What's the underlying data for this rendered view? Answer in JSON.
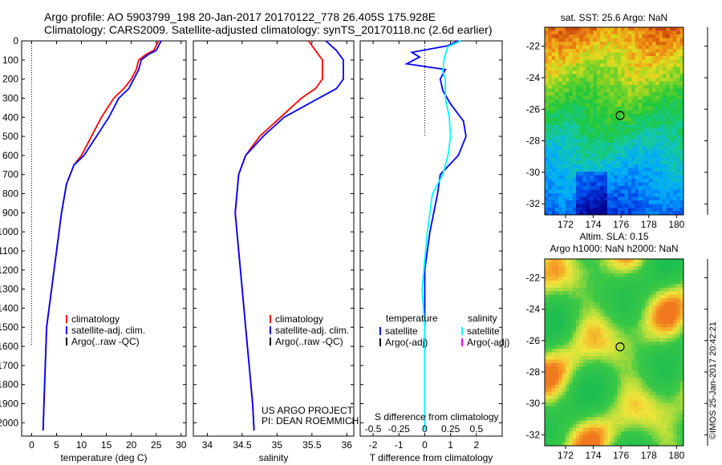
{
  "header": {
    "line1": "Argo profile: AO 5903799_198 20-Jan-2017 20170122_778 26.405S 175.928E",
    "line2": "Climatology: CARS2009. Satellite-adjusted climatology: synTS_20170118.nc (2.6d earlier)"
  },
  "credit": {
    "line1": "US ARGO PROJECT",
    "line2": "PI: DEAN ROEMMICH"
  },
  "stamp": "©IMOS 25-Jan-2017 20:42:21",
  "colors": {
    "climatology": "#ff0000",
    "satellite": "#0000ff",
    "argo": "#000000",
    "sal_satellite": "#00ffff",
    "sal_argo": "#ff00ff"
  },
  "chart_data": [
    {
      "type": "line",
      "id": "temperature",
      "xlabel": "temperature (deg C)",
      "ylim": [
        2070,
        0
      ],
      "xlim": [
        -2,
        31
      ],
      "xticks": [
        0,
        5,
        10,
        15,
        20,
        25,
        30
      ],
      "yticks": [
        0,
        100,
        200,
        300,
        400,
        500,
        600,
        700,
        800,
        900,
        1000,
        1100,
        1200,
        1300,
        1400,
        1500,
        1600,
        1700,
        1800,
        1900,
        2000
      ],
      "zero_line": {
        "x": 0,
        "ymax": 1600
      },
      "legend": [
        "climatology",
        "satellite-adj. clim.",
        "Argo(..raw -QC)"
      ],
      "series": [
        {
          "name": "climatology",
          "color": "#ff0000",
          "x": [
            25.5,
            24.5,
            23.0,
            21.5,
            21.0,
            20.0,
            18.5,
            16.5,
            14.0,
            12.0,
            10.0,
            8.5,
            7.0,
            6.0,
            5.0,
            4.0,
            3.0,
            2.6,
            2.3
          ],
          "y": [
            0,
            50,
            70,
            100,
            150,
            200,
            250,
            300,
            400,
            500,
            600,
            650,
            750,
            900,
            1100,
            1300,
            1500,
            1800,
            2040
          ]
        },
        {
          "name": "satellite-adj. clim.",
          "color": "#0000ff",
          "x": [
            26.0,
            25.0,
            23.5,
            22.0,
            21.5,
            20.5,
            19.5,
            17.5,
            15.5,
            13.0,
            10.5,
            8.5,
            7.0,
            6.0,
            5.0,
            4.0,
            3.0,
            2.6,
            2.3
          ],
          "y": [
            0,
            50,
            70,
            100,
            150,
            200,
            250,
            300,
            400,
            500,
            600,
            650,
            750,
            900,
            1100,
            1300,
            1500,
            1800,
            2040
          ]
        }
      ]
    },
    {
      "type": "line",
      "id": "salinity",
      "xlabel": "salinity",
      "ylim": [
        2070,
        0
      ],
      "xlim": [
        33.8,
        36.1
      ],
      "xticks": [
        34,
        34.5,
        35,
        35.5,
        36
      ],
      "legend": [
        "climatology",
        "satellite-adj. clim.",
        "Argo(..raw -QC)"
      ],
      "series": [
        {
          "name": "climatology",
          "color": "#ff0000",
          "x": [
            35.45,
            35.55,
            35.65,
            35.65,
            35.55,
            35.35,
            35.05,
            34.75,
            34.55,
            34.45,
            34.4,
            34.45,
            34.5,
            34.55,
            34.6,
            34.65,
            34.67
          ],
          "y": [
            0,
            50,
            100,
            200,
            250,
            300,
            400,
            500,
            600,
            700,
            900,
            1100,
            1300,
            1500,
            1700,
            1900,
            2040
          ]
        },
        {
          "name": "satellite-adj. clim.",
          "color": "#0000ff",
          "x": [
            35.7,
            35.85,
            35.95,
            35.95,
            35.85,
            35.6,
            35.1,
            34.8,
            34.55,
            34.45,
            34.4,
            34.45,
            34.5,
            34.55,
            34.6,
            34.65,
            34.67
          ],
          "y": [
            0,
            50,
            100,
            200,
            250,
            300,
            400,
            500,
            600,
            700,
            900,
            1100,
            1300,
            1500,
            1700,
            1900,
            2040
          ]
        }
      ]
    },
    {
      "type": "line",
      "id": "difference",
      "xlabel": "T difference from climatology",
      "xlabel2": "S difference from climatology",
      "ylim": [
        2070,
        0
      ],
      "xlim": [
        -2.5,
        3.0
      ],
      "xticks": [
        -2,
        -1,
        0,
        1,
        2
      ],
      "xticks2": [
        -0.5,
        -0.25,
        0,
        0.25,
        0.5
      ],
      "zero_line": {
        "x": 0,
        "ymax": 500
      },
      "legend": {
        "temperature_header": "temperature",
        "salinity_header": "salinity",
        "sat": "satellite",
        "argo": "Argo(-adj)"
      },
      "series": [
        {
          "name": "temperature satellite",
          "color": "#0000ff",
          "x": [
            1.3,
            0.9,
            -0.5,
            -0.2,
            -0.7,
            0.8,
            0.6,
            0.7,
            1.0,
            1.5,
            1.6,
            1.3,
            0.6,
            0.5,
            0.2,
            0.0,
            0.0,
            0.0,
            0.0
          ],
          "y": [
            0,
            25,
            60,
            85,
            120,
            150,
            200,
            260,
            330,
            420,
            500,
            600,
            700,
            800,
            1000,
            1200,
            1400,
            1700,
            2040
          ]
        },
        {
          "name": "salinity satellite",
          "color": "#00ffff",
          "x": [
            1.4,
            0.9,
            0.75,
            0.7,
            0.8,
            0.8,
            0.95,
            1.0,
            0.9,
            0.7,
            0.3,
            0.1,
            -0.1,
            0.0,
            0.0,
            0.0
          ],
          "y": [
            0,
            30,
            90,
            160,
            200,
            300,
            400,
            500,
            600,
            700,
            800,
            1000,
            1300,
            1500,
            1800,
            2040
          ]
        }
      ]
    }
  ],
  "maps": [
    {
      "id": "sst-map",
      "title": "sat. SST: 25.6 Argo: NaN",
      "xticks": [
        172,
        174,
        176,
        178,
        180
      ],
      "yticks": [
        -22,
        -24,
        -26,
        -28,
        -30,
        -32
      ],
      "lon_range": [
        170.5,
        180.5
      ],
      "lat_range": [
        -32.7,
        -20.8
      ],
      "marker": {
        "lon": 175.93,
        "lat": -26.4
      }
    },
    {
      "id": "sla-map",
      "title": "Altim. SLA: 0.15",
      "subtitle": "Argo h1000: NaN h2000: NaN",
      "xticks": [
        172,
        174,
        176,
        178,
        180
      ],
      "yticks": [
        -22,
        -24,
        -26,
        -28,
        -30,
        -32
      ],
      "lon_range": [
        170.5,
        180.5
      ],
      "lat_range": [
        -32.7,
        -20.8
      ],
      "marker": {
        "lon": 175.93,
        "lat": -26.4
      }
    }
  ]
}
